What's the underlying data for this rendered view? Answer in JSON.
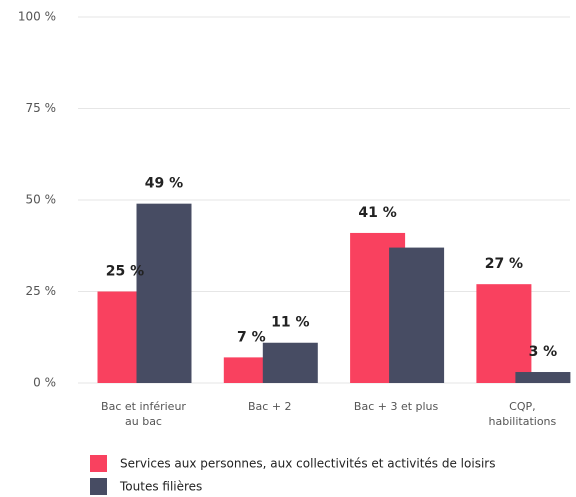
{
  "chart_data": {
    "type": "bar",
    "categories": [
      "Bac et inférieur au bac",
      "Bac + 2",
      "Bac + 3 et plus",
      "CQP, habilitations"
    ],
    "series": [
      {
        "name": "Services aux personnes, aux collectivités et activités de loisirs",
        "color": "#f9415f",
        "values": [
          25,
          7,
          41,
          27
        ],
        "value_labels": [
          "25 %",
          "7 %",
          "41 %",
          "27 %"
        ]
      },
      {
        "name": "Toutes filières",
        "color": "#474c63",
        "values": [
          49,
          11,
          37,
          3
        ],
        "value_labels": [
          "49 %",
          "11 %",
          null,
          "3 %"
        ]
      }
    ],
    "ylim": [
      0,
      100
    ],
    "yticks": [
      {
        "value": 0,
        "label": "0 %"
      },
      {
        "value": 25,
        "label": "25 %"
      },
      {
        "value": 50,
        "label": "50 %"
      },
      {
        "value": 75,
        "label": "75 %"
      },
      {
        "value": 100,
        "label": "100 %"
      }
    ],
    "grid": true
  }
}
